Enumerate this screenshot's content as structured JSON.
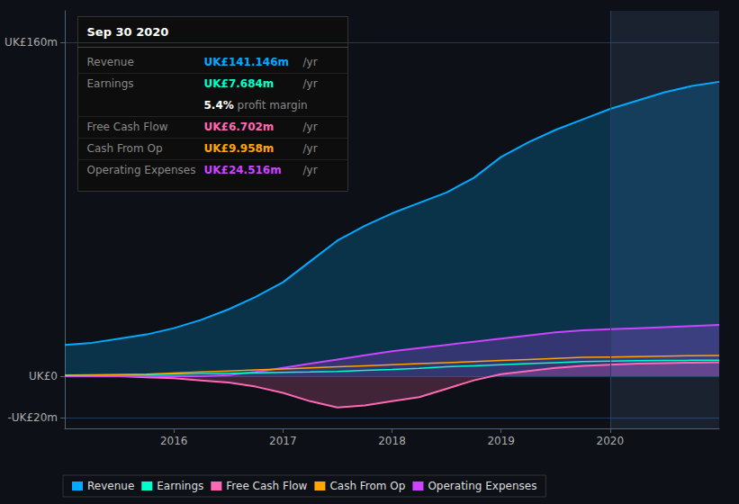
{
  "chart_data": {
    "type": "area",
    "x": [
      2015.0,
      2015.25,
      2015.5,
      2015.75,
      2016.0,
      2016.25,
      2016.5,
      2016.75,
      2017.0,
      2017.25,
      2017.5,
      2017.75,
      2018.0,
      2018.25,
      2018.5,
      2018.75,
      2019.0,
      2019.25,
      2019.5,
      2019.75,
      2020.0,
      2020.25,
      2020.5,
      2020.75,
      2021.0
    ],
    "xlim": [
      2015.0,
      2021.0
    ],
    "xticks": [
      2016,
      2017,
      2018,
      2019,
      2020
    ],
    "ylim": [
      -25,
      175
    ],
    "yticks": [
      {
        "value": -20,
        "label": "-UK£20m"
      },
      {
        "value": 0,
        "label": "UK£0"
      },
      {
        "value": 160,
        "label": "UK£160m"
      }
    ],
    "grid": true,
    "legend": "lower left",
    "series": [
      {
        "name": "Revenue",
        "type": "area",
        "color": "#00aaff",
        "values": [
          15,
          16,
          18,
          20,
          23,
          27,
          32,
          38,
          45,
          55,
          65,
          72,
          78,
          83,
          88,
          95,
          105,
          112,
          118,
          123,
          128,
          132,
          136,
          139,
          141
        ]
      },
      {
        "name": "Earnings",
        "type": "line",
        "color": "#00ffcc",
        "values": [
          0.5,
          0.6,
          0.7,
          0.8,
          1.0,
          1.2,
          1.4,
          1.6,
          1.8,
          2.0,
          2.3,
          2.8,
          3.2,
          3.8,
          4.5,
          5.0,
          5.5,
          6.0,
          6.5,
          7.0,
          7.2,
          7.4,
          7.5,
          7.6,
          7.684
        ]
      },
      {
        "name": "Free Cash Flow",
        "type": "area",
        "color": "#ff69b4",
        "values": [
          0.2,
          0.1,
          0.0,
          -0.5,
          -1.0,
          -2.0,
          -3.0,
          -5.0,
          -8.0,
          -12.0,
          -15.0,
          -14.0,
          -12.0,
          -10.0,
          -6.0,
          -2.0,
          1.0,
          2.5,
          4.0,
          5.0,
          5.5,
          6.0,
          6.3,
          6.5,
          6.702
        ]
      },
      {
        "name": "Cash From Op",
        "type": "line",
        "color": "#ffa500",
        "values": [
          0.3,
          0.5,
          0.8,
          1.0,
          1.5,
          2.0,
          2.5,
          3.0,
          3.5,
          4.0,
          4.5,
          5.0,
          5.5,
          6.0,
          6.5,
          7.0,
          7.5,
          8.0,
          8.5,
          9.0,
          9.2,
          9.4,
          9.6,
          9.8,
          9.958
        ]
      },
      {
        "name": "Operating Expenses",
        "type": "area",
        "color": "#cc44ff",
        "values": [
          0.0,
          0.0,
          0.0,
          0.0,
          0.0,
          0.0,
          0.5,
          2.0,
          4.0,
          6.0,
          8.0,
          10.0,
          12.0,
          13.5,
          15.0,
          16.5,
          18.0,
          19.5,
          21.0,
          22.0,
          22.5,
          23.0,
          23.5,
          24.0,
          24.516
        ]
      }
    ],
    "shaded_region": [
      2020.0,
      2021.0
    ],
    "annotation": {
      "title": "Sep 30 2020",
      "rows": [
        {
          "label": "Revenue",
          "value": "UK£141.146m",
          "unit": "/yr",
          "color": "#00aaff"
        },
        {
          "label": "Earnings",
          "value": "UK£7.684m",
          "unit": "/yr",
          "color": "#00ffcc"
        },
        {
          "value": "5.4%",
          "unit": " profit margin",
          "color": "#ffffff"
        },
        {
          "label": "Free Cash Flow",
          "value": "UK£6.702m",
          "unit": "/yr",
          "color": "#ff69b4"
        },
        {
          "label": "Cash From Op",
          "value": "UK£9.958m",
          "unit": "/yr",
          "color": "#ffa500"
        },
        {
          "label": "Operating Expenses",
          "value": "UK£24.516m",
          "unit": "/yr",
          "color": "#cc44ff"
        }
      ]
    }
  }
}
